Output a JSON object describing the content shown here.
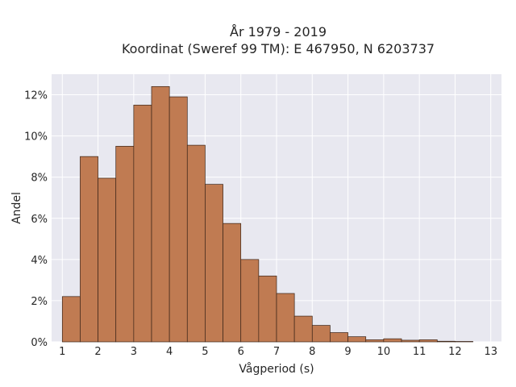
{
  "chart_data": {
    "type": "bar",
    "title": "År 1979 - 2019",
    "subtitle": "Koordinat (Sweref 99 TM): E 467950, N 6203737",
    "xlabel": "Vågperiod (s)",
    "ylabel": "Andel",
    "bin_width": 0.5,
    "bin_start": [
      1,
      1.5,
      2,
      2.5,
      3,
      3.5,
      4,
      4.5,
      5,
      5.5,
      6,
      6.5,
      7,
      7.5,
      8,
      8.5,
      9,
      9.5,
      10,
      10.5,
      11,
      11.5,
      12
    ],
    "values": [
      2.2,
      9.0,
      7.95,
      9.5,
      11.5,
      12.4,
      11.9,
      9.55,
      7.65,
      5.75,
      4.0,
      3.2,
      2.35,
      1.25,
      0.8,
      0.45,
      0.25,
      0.1,
      0.15,
      0.08,
      0.1,
      0.03,
      0.02
    ],
    "xlim": [
      0.7,
      13.3
    ],
    "ylim": [
      0,
      13
    ],
    "xticks": [
      1,
      2,
      3,
      4,
      5,
      6,
      7,
      8,
      9,
      10,
      11,
      12,
      13
    ],
    "xtick_labels": [
      "1",
      "2",
      "3",
      "4",
      "5",
      "6",
      "7",
      "8",
      "9",
      "10",
      "11",
      "12",
      "13"
    ],
    "yticks": [
      0,
      2,
      4,
      6,
      8,
      10,
      12
    ],
    "ytick_labels": [
      "0%",
      "2%",
      "4%",
      "6%",
      "8%",
      "10%",
      "12%"
    ],
    "grid": true,
    "colors": {
      "bar": "#c07b52",
      "bar_edge": "#3a2418",
      "plot_bg": "#e8e8f0",
      "grid": "#ffffff"
    }
  }
}
